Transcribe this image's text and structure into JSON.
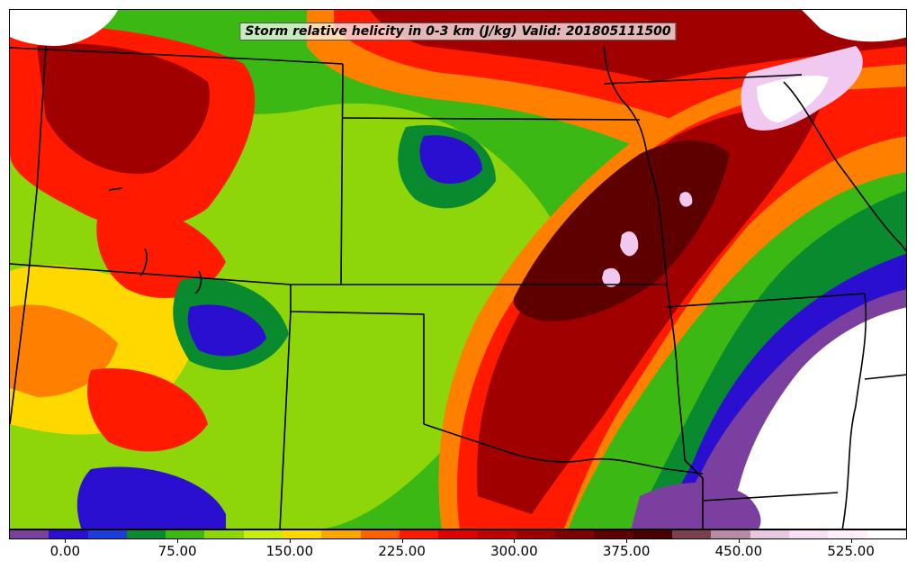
{
  "title": "Storm relative helicity in 0-3 km (J/kg) Valid: 201805111500",
  "colorbar": {
    "colors": [
      "#7b3fa0",
      "#2b0fd0",
      "#1a3fd8",
      "#0a8a2e",
      "#3cb814",
      "#8ed60a",
      "#c8ec10",
      "#ffd800",
      "#ffa500",
      "#ff6000",
      "#ff1a00",
      "#e00000",
      "#c00000",
      "#9e0000",
      "#7e0000",
      "#5e0000",
      "#4a0000",
      "#7a4050",
      "#b88aa8",
      "#e8c8e0",
      "#f8e0f4",
      "#fff0fc",
      "#ffffff"
    ],
    "tick_labels": [
      "0.00",
      "75.00",
      "150.00",
      "225.00",
      "300.00",
      "375.00",
      "450.00",
      "525.00"
    ],
    "tick_values": [
      0,
      75,
      150,
      225,
      300,
      375,
      450,
      525
    ],
    "range": [
      -37.5,
      562.5
    ]
  },
  "palette": {
    "purple": "#7b3fa0",
    "blue": "#2b0fd0",
    "dgreen": "#0a8a2e",
    "green": "#3cb814",
    "lgreen": "#8ed60a",
    "yellow": "#ffd800",
    "orange": "#ff8000",
    "red": "#ff1a00",
    "dred": "#a00000",
    "maroon": "#5e0000",
    "pink": "#f0c8f0",
    "white": "#ffffff"
  }
}
